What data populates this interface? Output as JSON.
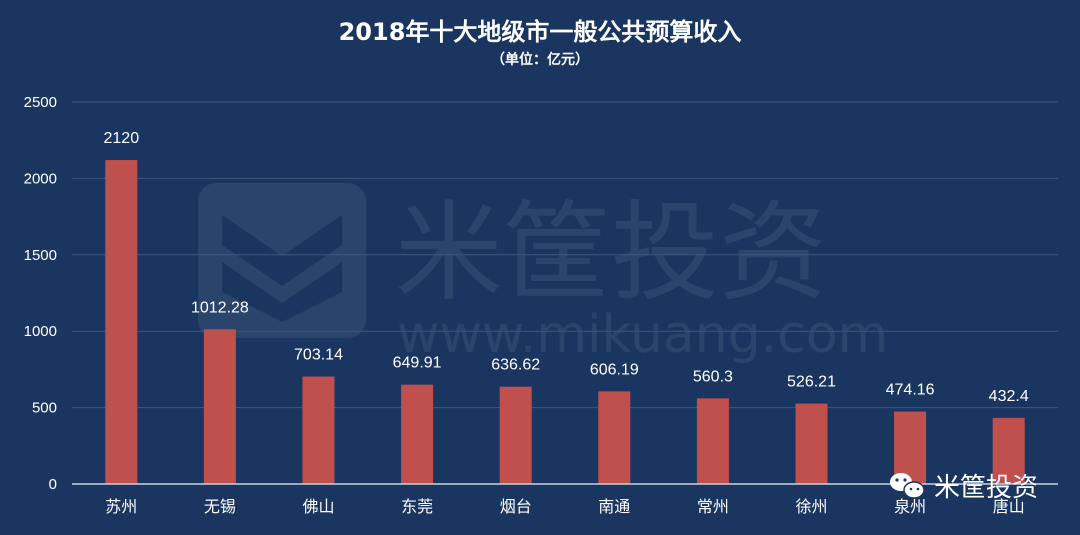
{
  "chart_data": {
    "type": "bar",
    "title": "2018年十大地级市一般公共预算收入",
    "subtitle": "（单位：亿元）",
    "categories": [
      "苏州",
      "无锡",
      "佛山",
      "东莞",
      "烟台",
      "南通",
      "常州",
      "徐州",
      "泉州",
      "唐山"
    ],
    "values": [
      2120,
      1012.28,
      703.14,
      649.91,
      636.62,
      606.19,
      560.3,
      526.21,
      474.16,
      432.4
    ],
    "data_labels": [
      "2120",
      "1012.28",
      "703.14",
      "649.91",
      "636.62",
      "606.19",
      "560.3",
      "526.21",
      "474.16",
      "432.4"
    ],
    "ylim": [
      0,
      2500
    ],
    "yticks": [
      "0",
      "500",
      "1000",
      "1500",
      "2000",
      "2500"
    ],
    "xlabel": "",
    "ylabel": "",
    "grid": true,
    "legend": "none",
    "bar_color": "#c0504d",
    "background_color": "#1a3660"
  },
  "watermark": {
    "brand": "米筐投资",
    "url": "www.mikuang.com"
  },
  "badge": {
    "icon": "wechat-icon",
    "label": "米筐投资"
  }
}
